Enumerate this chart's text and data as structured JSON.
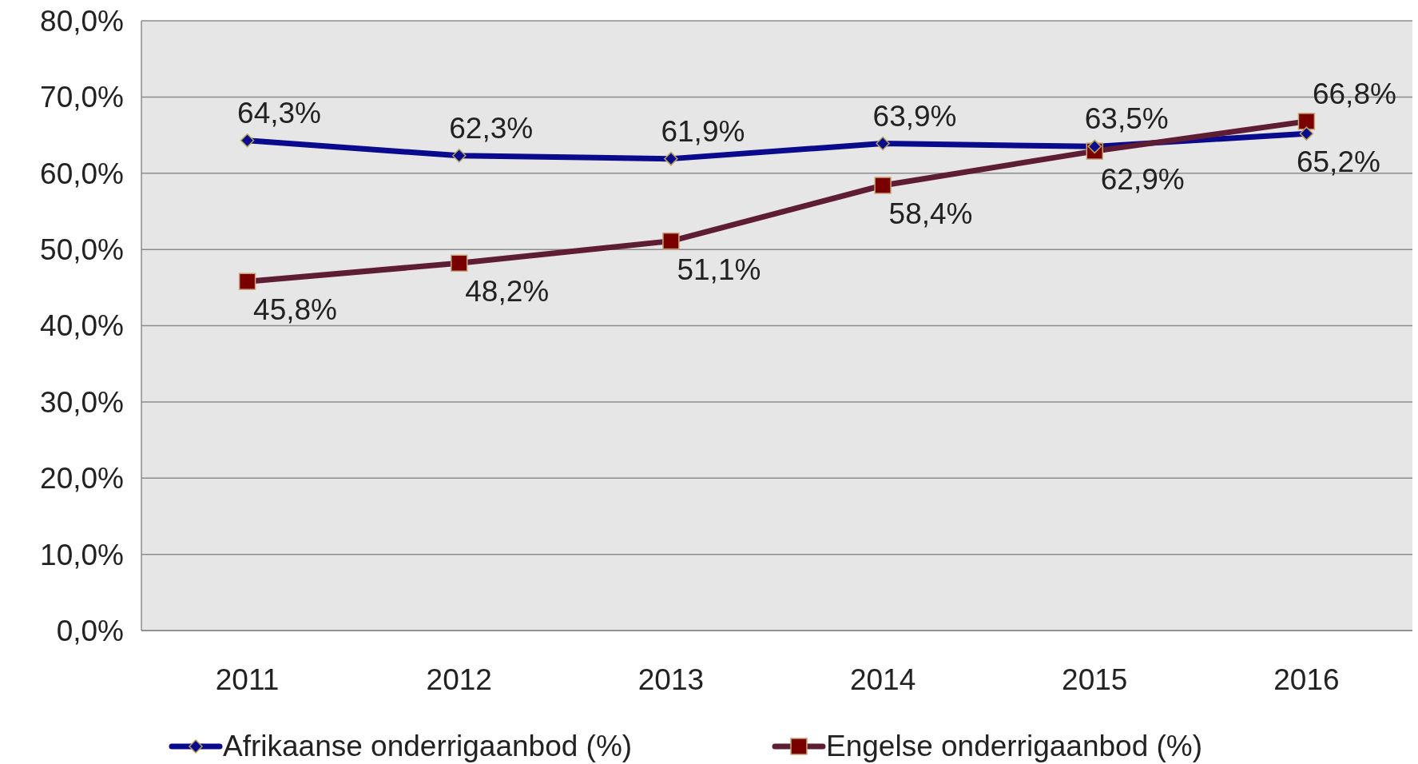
{
  "chart_data": {
    "type": "line",
    "categories": [
      "2011",
      "2012",
      "2013",
      "2014",
      "2015",
      "2016"
    ],
    "ylim": [
      0,
      80
    ],
    "yticks": [
      {
        "value": 0,
        "label": "0,0%"
      },
      {
        "value": 10,
        "label": "10,0%"
      },
      {
        "value": 20,
        "label": "20,0%"
      },
      {
        "value": 30,
        "label": "30,0%"
      },
      {
        "value": 40,
        "label": "40,0%"
      },
      {
        "value": 50,
        "label": "50,0%"
      },
      {
        "value": 60,
        "label": "60,0%"
      },
      {
        "value": 70,
        "label": "70,0%"
      },
      {
        "value": 80,
        "label": "80,0%"
      }
    ],
    "grid": "y",
    "legend": "bottom",
    "line_style": "solid",
    "series": [
      {
        "name": "Afrikaanse onderrigaanbod (%)",
        "color": "#0a0a8c",
        "marker": "diamond",
        "values": [
          64.3,
          62.3,
          61.9,
          63.9,
          63.5,
          65.2
        ],
        "value_labels": [
          "64,3%",
          "62,3%",
          "61,9%",
          "63,9%",
          "63,5%",
          "65,2%"
        ]
      },
      {
        "name": "Engelse onderrigaanbod (%)",
        "color": "#5e1d35",
        "marker": "square",
        "values": [
          45.8,
          48.2,
          51.1,
          58.4,
          62.9,
          66.8
        ],
        "value_labels": [
          "45,8%",
          "48,2%",
          "51,1%",
          "58,4%",
          "62,9%",
          "66,8%"
        ]
      }
    ]
  }
}
